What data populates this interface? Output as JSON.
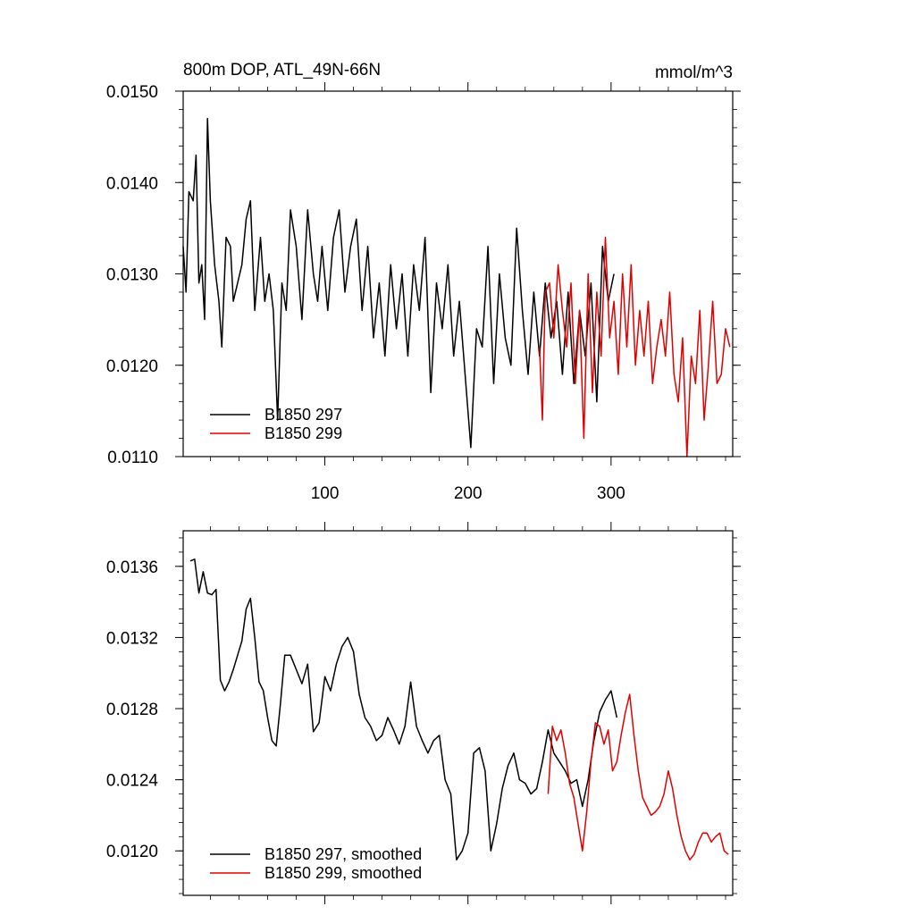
{
  "figure": {
    "title": "800m DOP, ATL_49N-66N",
    "units": "mmol/m^3"
  },
  "chart_data": [
    {
      "type": "line",
      "xlim": [
        1,
        385
      ],
      "ylim": [
        0.011,
        0.015
      ],
      "xticks": [
        100,
        200,
        300
      ],
      "yticks": [
        0.011,
        0.012,
        0.013,
        0.014,
        0.015
      ],
      "ytick_labels": [
        "0.0110",
        "0.0120",
        "0.0130",
        "0.0140",
        "0.0150"
      ],
      "grid": false,
      "legend_position": "bottom-left",
      "series": [
        {
          "name": "B1850 297",
          "color": "#000000",
          "x": [
            1,
            3,
            5,
            8,
            10,
            12,
            14,
            16,
            18,
            20,
            23,
            26,
            28,
            31,
            34,
            36,
            39,
            42,
            45,
            48,
            51,
            55,
            58,
            61,
            64,
            67,
            70,
            73,
            76,
            80,
            84,
            88,
            92,
            95,
            98,
            102,
            106,
            110,
            114,
            118,
            122,
            126,
            130,
            134,
            138,
            142,
            146,
            150,
            154,
            158,
            162,
            166,
            170,
            174,
            178,
            182,
            186,
            190,
            194,
            198,
            202,
            206,
            210,
            214,
            218,
            222,
            226,
            230,
            234,
            238,
            242,
            246,
            250,
            254,
            258,
            262,
            266,
            270,
            274,
            278,
            282,
            286,
            290,
            294,
            298,
            302
          ],
          "values": [
            0.0133,
            0.0128,
            0.0139,
            0.0138,
            0.0143,
            0.0129,
            0.0131,
            0.0125,
            0.0147,
            0.0138,
            0.0131,
            0.0127,
            0.0122,
            0.0134,
            0.0133,
            0.0127,
            0.0129,
            0.0131,
            0.0136,
            0.0138,
            0.0126,
            0.0134,
            0.0127,
            0.013,
            0.0126,
            0.0114,
            0.0129,
            0.0126,
            0.0137,
            0.0133,
            0.0125,
            0.0137,
            0.013,
            0.0127,
            0.0133,
            0.0126,
            0.0134,
            0.0137,
            0.0128,
            0.0133,
            0.0136,
            0.0126,
            0.0133,
            0.0123,
            0.0129,
            0.0121,
            0.0131,
            0.0124,
            0.013,
            0.0121,
            0.0131,
            0.0126,
            0.0134,
            0.0117,
            0.0129,
            0.0124,
            0.0131,
            0.0121,
            0.0127,
            0.0119,
            0.0111,
            0.0124,
            0.0122,
            0.0133,
            0.0118,
            0.013,
            0.0123,
            0.012,
            0.0135,
            0.0126,
            0.0119,
            0.0128,
            0.0121,
            0.0129,
            0.0123,
            0.0127,
            0.0119,
            0.0128,
            0.0118,
            0.0126,
            0.0121,
            0.0129,
            0.0116,
            0.0133,
            0.0127,
            0.013
          ]
        },
        {
          "name": "B1850 299",
          "color": "#e00000",
          "x": [
            250,
            252,
            254,
            257,
            260,
            263,
            266,
            269,
            272,
            275,
            278,
            281,
            284,
            287,
            290,
            293,
            296,
            299,
            302,
            305,
            308,
            311,
            314,
            317,
            320,
            323,
            326,
            329,
            332,
            335,
            338,
            341,
            344,
            347,
            350,
            353,
            356,
            359,
            362,
            365,
            368,
            371,
            374,
            377,
            380,
            383
          ],
          "values": [
            0.0122,
            0.0114,
            0.0128,
            0.0129,
            0.0123,
            0.0131,
            0.0126,
            0.0122,
            0.0129,
            0.0118,
            0.0126,
            0.0112,
            0.013,
            0.0117,
            0.0128,
            0.0121,
            0.0134,
            0.0123,
            0.0127,
            0.0119,
            0.013,
            0.0122,
            0.0131,
            0.012,
            0.0126,
            0.0121,
            0.0127,
            0.0118,
            0.0122,
            0.0125,
            0.0121,
            0.0128,
            0.0119,
            0.0116,
            0.0123,
            0.011,
            0.0121,
            0.0118,
            0.0126,
            0.0114,
            0.012,
            0.0127,
            0.0118,
            0.0119,
            0.0124,
            0.0122
          ]
        }
      ]
    },
    {
      "type": "line",
      "xlim": [
        1,
        385
      ],
      "ylim": [
        0.01175,
        0.0138
      ],
      "xticks": [
        100,
        200,
        300
      ],
      "yticks": [
        0.012,
        0.0124,
        0.0128,
        0.0132,
        0.0136
      ],
      "ytick_labels": [
        "0.0120",
        "0.0124",
        "0.0128",
        "0.0132",
        "0.0136"
      ],
      "grid": false,
      "legend_position": "bottom-left",
      "series": [
        {
          "name": "B1850 297, smoothed",
          "color": "#000000",
          "x": [
            6,
            9,
            12,
            15,
            18,
            21,
            24,
            27,
            30,
            33,
            36,
            39,
            42,
            45,
            48,
            51,
            54,
            57,
            60,
            63,
            66,
            69,
            72,
            76,
            80,
            84,
            88,
            92,
            96,
            100,
            104,
            108,
            112,
            116,
            120,
            124,
            128,
            132,
            136,
            140,
            144,
            148,
            152,
            156,
            160,
            164,
            168,
            172,
            176,
            180,
            184,
            188,
            192,
            196,
            200,
            204,
            208,
            212,
            216,
            220,
            224,
            228,
            232,
            236,
            240,
            244,
            248,
            252,
            256,
            260,
            264,
            268,
            272,
            276,
            280,
            284,
            288,
            292,
            296,
            300,
            304
          ],
          "values": [
            0.01363,
            0.01364,
            0.01345,
            0.01357,
            0.01345,
            0.01344,
            0.01347,
            0.01296,
            0.0129,
            0.01295,
            0.01302,
            0.0131,
            0.01318,
            0.01336,
            0.01342,
            0.0132,
            0.01295,
            0.0129,
            0.01275,
            0.01262,
            0.01259,
            0.01283,
            0.0131,
            0.0131,
            0.01302,
            0.01294,
            0.01305,
            0.01267,
            0.01272,
            0.01298,
            0.0129,
            0.01305,
            0.01315,
            0.0132,
            0.01312,
            0.01288,
            0.01275,
            0.0127,
            0.01262,
            0.01265,
            0.01275,
            0.01268,
            0.0126,
            0.0127,
            0.01295,
            0.0127,
            0.01262,
            0.01255,
            0.01262,
            0.01265,
            0.0124,
            0.01232,
            0.01195,
            0.012,
            0.0121,
            0.01255,
            0.01258,
            0.01245,
            0.012,
            0.01215,
            0.01235,
            0.01248,
            0.01255,
            0.0124,
            0.01238,
            0.01232,
            0.01235,
            0.0125,
            0.01268,
            0.01255,
            0.0125,
            0.01245,
            0.01238,
            0.0124,
            0.01225,
            0.0124,
            0.01262,
            0.01278,
            0.01285,
            0.0129,
            0.01275
          ]
        },
        {
          "name": "B1850 299, smoothed",
          "color": "#e00000",
          "x": [
            256,
            259,
            262,
            265,
            268,
            271,
            274,
            277,
            280,
            283,
            286,
            289,
            292,
            295,
            298,
            301,
            304,
            307,
            310,
            313,
            316,
            319,
            322,
            325,
            328,
            331,
            334,
            337,
            340,
            343,
            346,
            349,
            352,
            355,
            358,
            361,
            364,
            367,
            370,
            373,
            376,
            379,
            382
          ],
          "values": [
            0.01232,
            0.0127,
            0.01262,
            0.01268,
            0.01255,
            0.01238,
            0.0123,
            0.01215,
            0.012,
            0.01222,
            0.0125,
            0.01272,
            0.0127,
            0.0126,
            0.01268,
            0.01245,
            0.0125,
            0.01265,
            0.01278,
            0.01288,
            0.01265,
            0.01245,
            0.0123,
            0.01225,
            0.0122,
            0.01222,
            0.01225,
            0.01232,
            0.01245,
            0.01235,
            0.0122,
            0.01208,
            0.012,
            0.01195,
            0.01198,
            0.01205,
            0.0121,
            0.0121,
            0.01205,
            0.01208,
            0.0121,
            0.012,
            0.01198
          ]
        }
      ]
    }
  ]
}
